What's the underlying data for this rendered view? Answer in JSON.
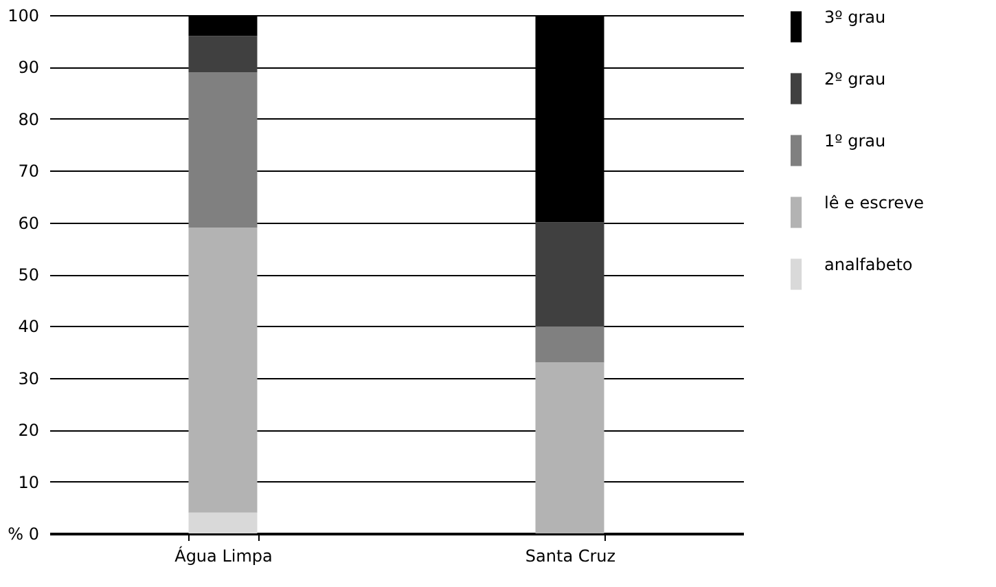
{
  "chart_data": {
    "type": "bar",
    "stacked": true,
    "categories": [
      "Água Limpa",
      "Santa Cruz"
    ],
    "series": [
      {
        "name": "analfabeto",
        "color": "#d9d9d9",
        "values": [
          4,
          null
        ]
      },
      {
        "name": "lê e escreve",
        "color": "#b3b3b3",
        "values": [
          55,
          33
        ]
      },
      {
        "name": "1º grau",
        "color": "#808080",
        "values": [
          30,
          7
        ]
      },
      {
        "name": "2º grau",
        "color": "#404040",
        "values": [
          7,
          20
        ]
      },
      {
        "name": "3º grau",
        "color": "#000000",
        "values": [
          4,
          40
        ]
      }
    ],
    "ylim": [
      0,
      100
    ],
    "yticks": [
      {
        "value": 0,
        "label": "% 0"
      },
      10,
      20,
      30,
      40,
      50,
      60,
      70,
      80,
      90,
      100
    ],
    "grid": "y",
    "legend": "right"
  }
}
